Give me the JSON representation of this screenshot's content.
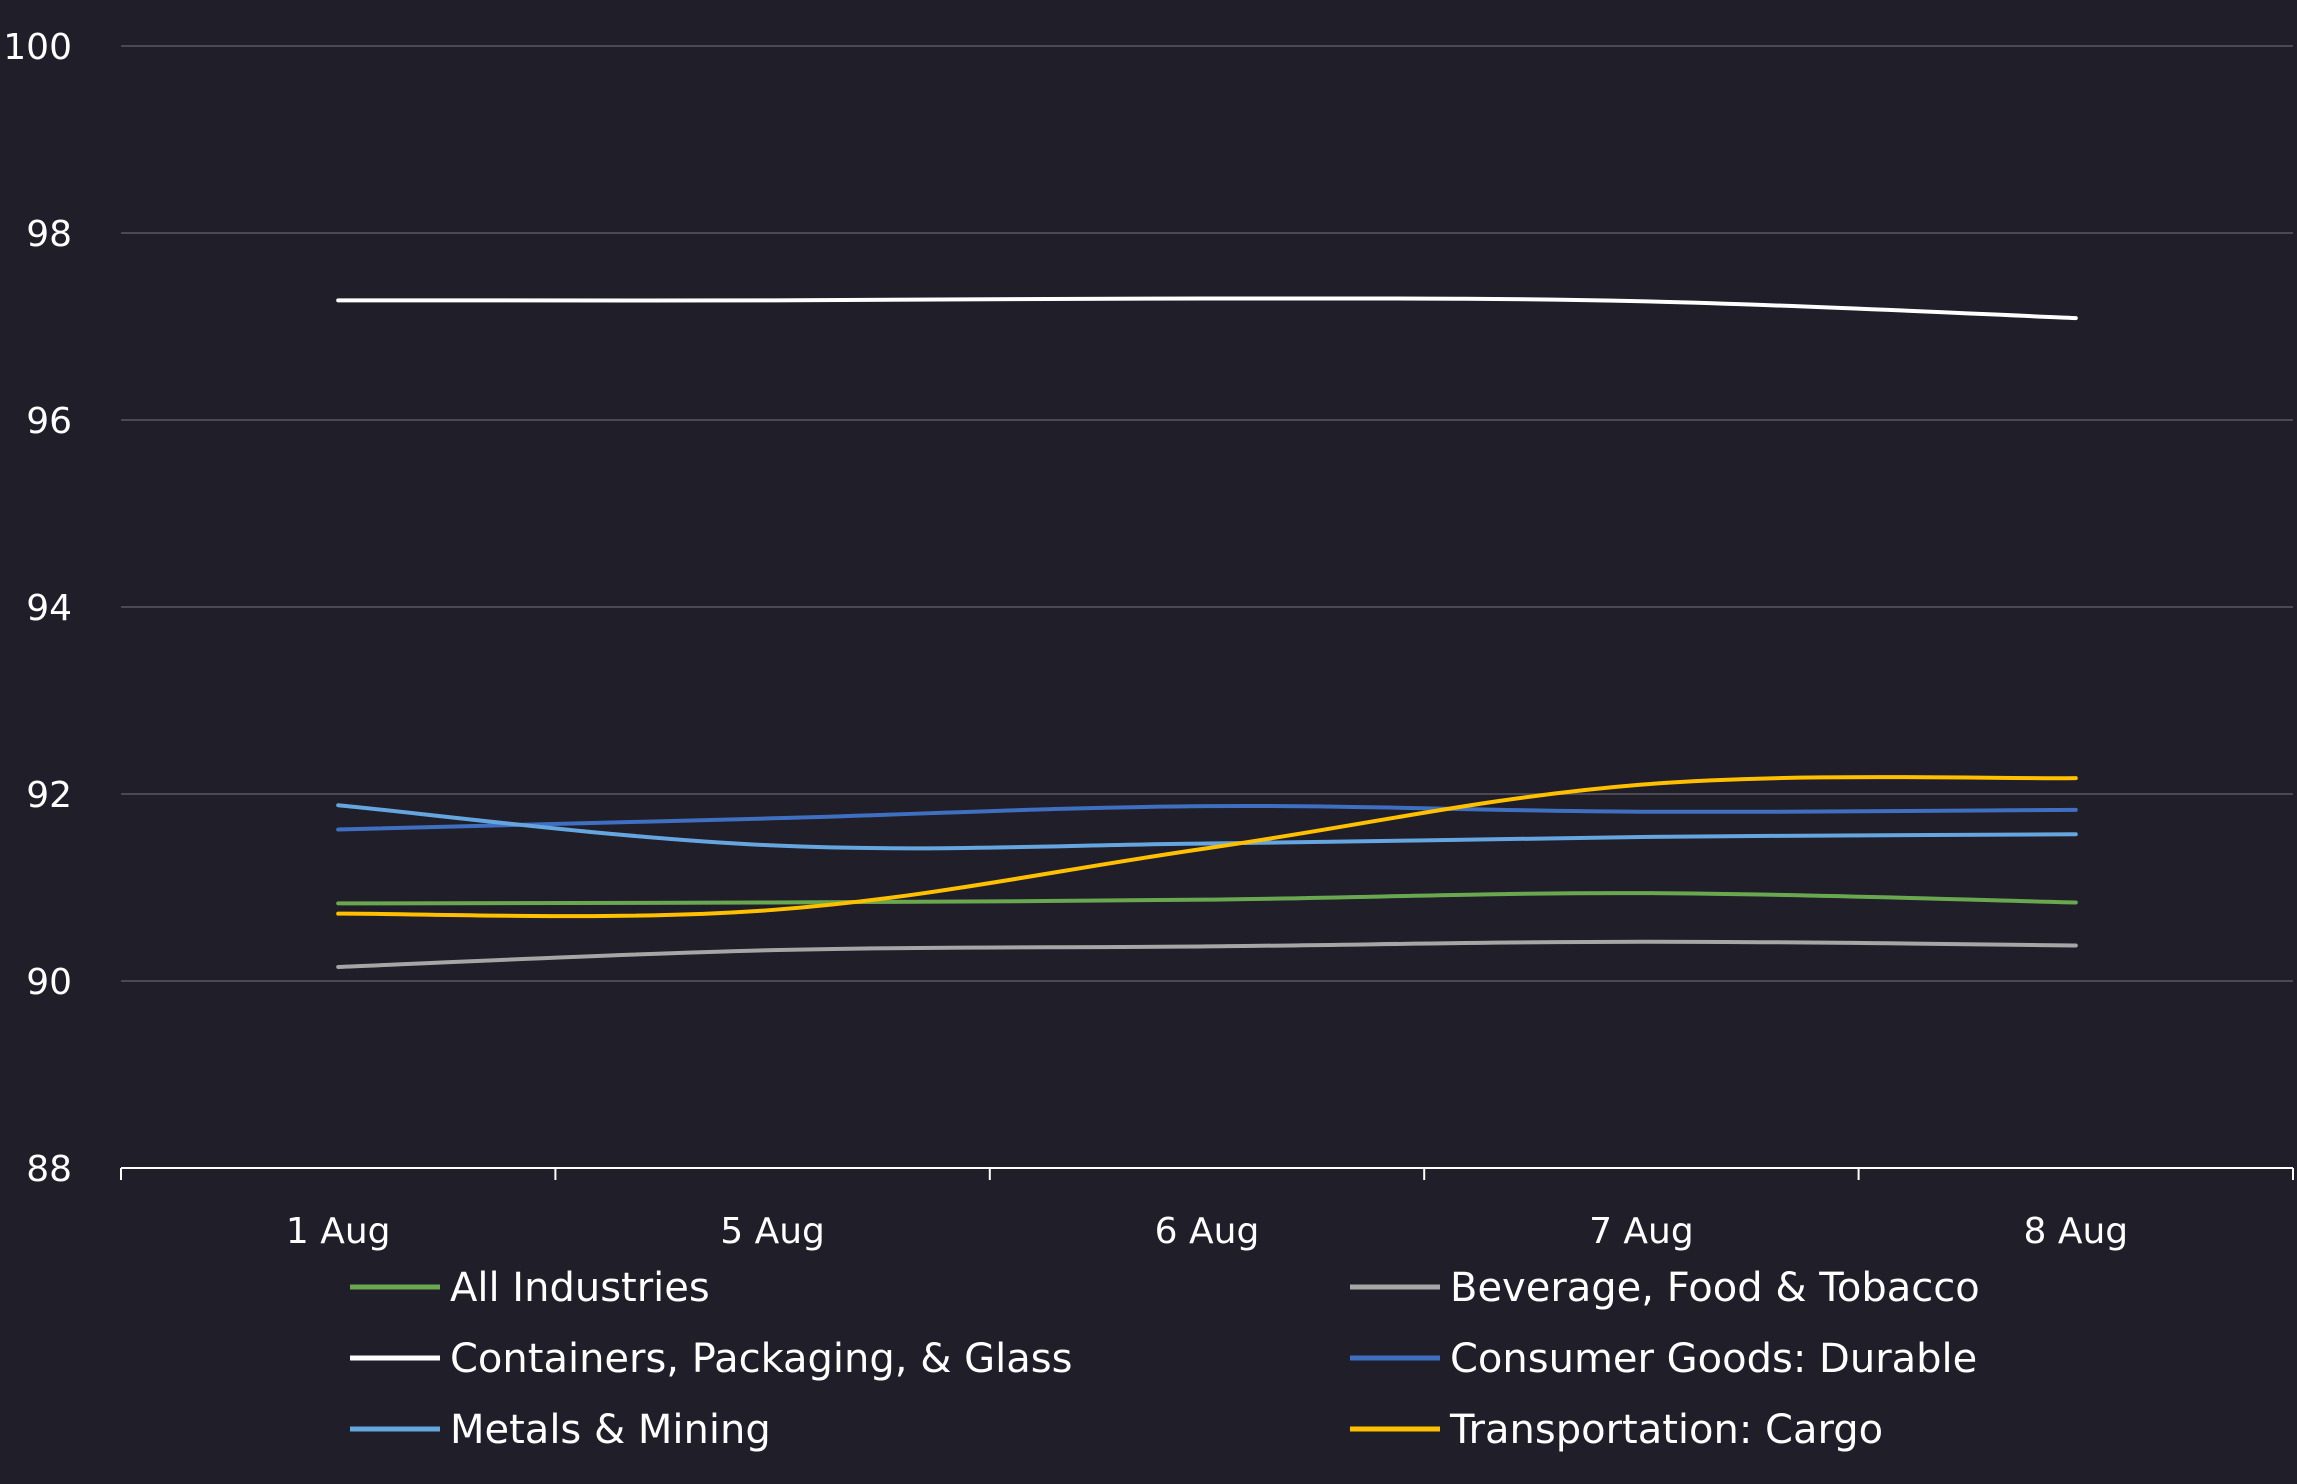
{
  "chart_data": {
    "type": "line",
    "title": "",
    "xlabel": "",
    "ylabel": "",
    "categories": [
      "1 Aug",
      "5 Aug",
      "6 Aug",
      "7 Aug",
      "8 Aug"
    ],
    "ylim": [
      88,
      100
    ],
    "yticks": [
      88,
      90,
      92,
      94,
      96,
      98,
      100
    ],
    "grid": "horizontal",
    "legend_position": "bottom",
    "legend_columns": 2,
    "series": [
      {
        "name": "All Industries",
        "color": "#6aa84f",
        "values": [
          90.83,
          90.84,
          90.87,
          90.94,
          90.84
        ]
      },
      {
        "name": "Beverage, Food & Tobacco",
        "color": "#a6a6a6",
        "values": [
          90.15,
          90.33,
          90.37,
          90.42,
          90.38
        ]
      },
      {
        "name": "Containers, Packaging, & Glass",
        "color": "#ffffff",
        "values": [
          97.28,
          97.28,
          97.3,
          97.27,
          97.09
        ]
      },
      {
        "name": "Consumer Goods: Durable",
        "color": "#3f6fc0",
        "values": [
          91.62,
          91.74,
          91.87,
          91.81,
          91.83
        ]
      },
      {
        "name": "Metals & Mining",
        "color": "#66a6e0",
        "values": [
          91.88,
          91.45,
          91.47,
          91.54,
          91.57
        ]
      },
      {
        "name": "Transportation: Cargo",
        "color": "#ffc000",
        "values": [
          90.72,
          90.76,
          91.42,
          92.1,
          92.17
        ]
      }
    ]
  }
}
